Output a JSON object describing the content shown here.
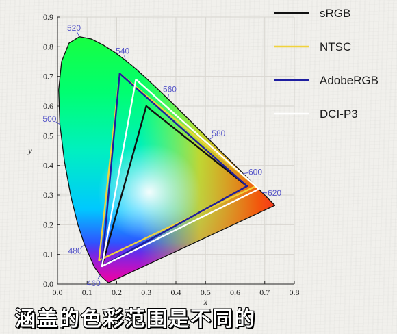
{
  "chart_data": {
    "type": "line",
    "xlabel": "x",
    "ylabel": "y",
    "xlim": [
      0.0,
      0.8
    ],
    "ylim": [
      0.0,
      0.9
    ],
    "x_ticks": [
      "0.0",
      "0.1",
      "0.2",
      "0.3",
      "0.4",
      "0.5",
      "0.6",
      "0.7",
      "0.8"
    ],
    "y_ticks": [
      "0.0",
      "0.1",
      "0.2",
      "0.3",
      "0.4",
      "0.5",
      "0.6",
      "0.7",
      "0.8",
      "0.9"
    ],
    "grid": true,
    "legend_position": "top-right",
    "spectral_locus": [
      [
        0.1741,
        0.005
      ],
      [
        0.1738,
        0.0049
      ],
      [
        0.1733,
        0.0048
      ],
      [
        0.1726,
        0.0048
      ],
      [
        0.1714,
        0.0051
      ],
      [
        0.1689,
        0.0069
      ],
      [
        0.1644,
        0.0109
      ],
      [
        0.1566,
        0.0177
      ],
      [
        0.144,
        0.0297
      ],
      [
        0.1241,
        0.0578
      ],
      [
        0.0913,
        0.1327
      ],
      [
        0.0687,
        0.2007
      ],
      [
        0.0454,
        0.295
      ],
      [
        0.0235,
        0.4127
      ],
      [
        0.0082,
        0.5384
      ],
      [
        0.0039,
        0.6548
      ],
      [
        0.0139,
        0.7502
      ],
      [
        0.0389,
        0.812
      ],
      [
        0.0743,
        0.8338
      ],
      [
        0.1142,
        0.8262
      ],
      [
        0.1547,
        0.8059
      ],
      [
        0.1929,
        0.7816
      ],
      [
        0.2296,
        0.7543
      ],
      [
        0.2658,
        0.7243
      ],
      [
        0.3016,
        0.6923
      ],
      [
        0.3373,
        0.6589
      ],
      [
        0.3731,
        0.6245
      ],
      [
        0.4087,
        0.5896
      ],
      [
        0.4441,
        0.5547
      ],
      [
        0.4788,
        0.5202
      ],
      [
        0.5125,
        0.4866
      ],
      [
        0.5448,
        0.4544
      ],
      [
        0.5752,
        0.4242
      ],
      [
        0.6029,
        0.3965
      ],
      [
        0.627,
        0.3725
      ],
      [
        0.6482,
        0.3514
      ],
      [
        0.6658,
        0.334
      ],
      [
        0.6801,
        0.3197
      ],
      [
        0.6915,
        0.3083
      ],
      [
        0.7006,
        0.2993
      ],
      [
        0.7079,
        0.292
      ],
      [
        0.714,
        0.2859
      ],
      [
        0.719,
        0.2809
      ],
      [
        0.723,
        0.277
      ],
      [
        0.726,
        0.274
      ],
      [
        0.7283,
        0.2717
      ],
      [
        0.73,
        0.27
      ],
      [
        0.7311,
        0.2689
      ],
      [
        0.732,
        0.268
      ],
      [
        0.7327,
        0.2673
      ],
      [
        0.7334,
        0.2666
      ],
      [
        0.734,
        0.266
      ],
      [
        0.7344,
        0.2656
      ],
      [
        0.7346,
        0.2654
      ],
      [
        0.7347,
        0.2653
      ]
    ],
    "wavelength_labels": [
      {
        "label": "460",
        "x": 0.144,
        "y": 0.0297
      },
      {
        "label": "480",
        "x": 0.0913,
        "y": 0.1327
      },
      {
        "label": "500",
        "x": 0.0082,
        "y": 0.5384
      },
      {
        "label": "520",
        "x": 0.0743,
        "y": 0.8338
      },
      {
        "label": "540",
        "x": 0.2296,
        "y": 0.7543
      },
      {
        "label": "560",
        "x": 0.3731,
        "y": 0.6245
      },
      {
        "label": "580",
        "x": 0.5125,
        "y": 0.4866
      },
      {
        "label": "600",
        "x": 0.627,
        "y": 0.3725
      },
      {
        "label": "620",
        "x": 0.6915,
        "y": 0.3083
      }
    ],
    "series": [
      {
        "name": "sRGB",
        "color": "#111111",
        "x": [
          0.64,
          0.3,
          0.15
        ],
        "y": [
          0.33,
          0.6,
          0.06
        ]
      },
      {
        "name": "NTSC",
        "color": "#f0d23c",
        "x": [
          0.67,
          0.21,
          0.14
        ],
        "y": [
          0.33,
          0.71,
          0.08
        ]
      },
      {
        "name": "AdobeRGB",
        "color": "#1e1ea0",
        "x": [
          0.64,
          0.21,
          0.15
        ],
        "y": [
          0.33,
          0.71,
          0.06
        ]
      },
      {
        "name": "DCI-P3",
        "color": "#ffffff",
        "x": [
          0.68,
          0.265,
          0.15
        ],
        "y": [
          0.32,
          0.69,
          0.06
        ]
      }
    ]
  },
  "subtitle": "涵盖的色彩范围是不同的"
}
